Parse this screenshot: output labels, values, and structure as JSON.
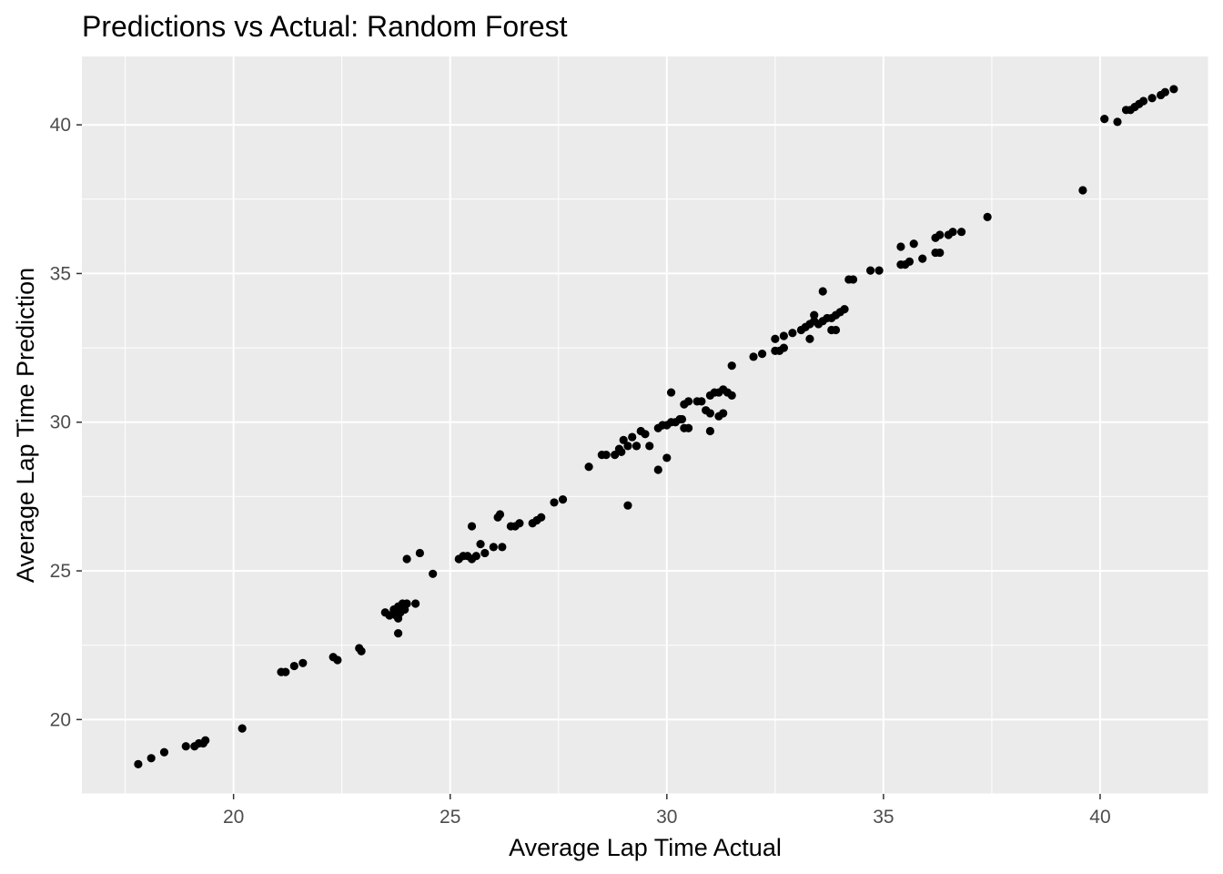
{
  "chart_data": {
    "type": "scatter",
    "title": "Predictions vs Actual: Random Forest",
    "xlabel": "Average Lap Time Actual",
    "ylabel": "Average Lap Time Prediction",
    "xlim": [
      16.5,
      42.5
    ],
    "ylim": [
      17.5,
      42.3
    ],
    "x_ticks": [
      20,
      25,
      30,
      35,
      40
    ],
    "y_ticks": [
      20,
      25,
      30,
      35,
      40
    ],
    "x_tick_labels": [
      "20",
      "25",
      "30",
      "35",
      "40"
    ],
    "y_tick_labels": [
      "20",
      "25",
      "30",
      "35",
      "40"
    ],
    "grid": true,
    "point_color": "#000000",
    "panel_color": "#ebebeb",
    "grid_color": "#ffffff",
    "points": [
      [
        17.8,
        18.5
      ],
      [
        18.1,
        18.7
      ],
      [
        18.4,
        18.9
      ],
      [
        18.9,
        19.1
      ],
      [
        19.1,
        19.1
      ],
      [
        19.2,
        19.2
      ],
      [
        19.3,
        19.2
      ],
      [
        19.35,
        19.3
      ],
      [
        20.2,
        19.7
      ],
      [
        21.1,
        21.6
      ],
      [
        21.2,
        21.6
      ],
      [
        21.4,
        21.8
      ],
      [
        21.6,
        21.9
      ],
      [
        22.3,
        22.1
      ],
      [
        22.4,
        22.0
      ],
      [
        22.9,
        22.4
      ],
      [
        22.95,
        22.3
      ],
      [
        23.5,
        23.6
      ],
      [
        23.6,
        23.5
      ],
      [
        23.7,
        23.7
      ],
      [
        23.75,
        23.5
      ],
      [
        23.8,
        23.4
      ],
      [
        23.8,
        23.8
      ],
      [
        23.85,
        23.6
      ],
      [
        23.9,
        23.9
      ],
      [
        23.95,
        23.7
      ],
      [
        24.0,
        23.9
      ],
      [
        23.8,
        22.9
      ],
      [
        24.2,
        23.9
      ],
      [
        24.0,
        25.4
      ],
      [
        24.3,
        25.6
      ],
      [
        24.6,
        24.9
      ],
      [
        25.2,
        25.4
      ],
      [
        25.3,
        25.5
      ],
      [
        25.4,
        25.5
      ],
      [
        25.5,
        25.4
      ],
      [
        25.6,
        25.5
      ],
      [
        25.5,
        26.5
      ],
      [
        25.7,
        25.9
      ],
      [
        25.8,
        25.6
      ],
      [
        26.0,
        25.8
      ],
      [
        26.2,
        25.8
      ],
      [
        26.1,
        26.8
      ],
      [
        26.15,
        26.9
      ],
      [
        26.4,
        26.5
      ],
      [
        26.6,
        26.6
      ],
      [
        26.5,
        26.5
      ],
      [
        26.9,
        26.6
      ],
      [
        27.0,
        26.7
      ],
      [
        27.1,
        26.8
      ],
      [
        27.4,
        27.3
      ],
      [
        27.6,
        27.4
      ],
      [
        28.2,
        28.5
      ],
      [
        28.5,
        28.9
      ],
      [
        28.6,
        28.9
      ],
      [
        28.8,
        28.9
      ],
      [
        28.9,
        29.1
      ],
      [
        29.0,
        29.4
      ],
      [
        28.95,
        29.0
      ],
      [
        29.1,
        29.2
      ],
      [
        29.2,
        29.5
      ],
      [
        29.3,
        29.2
      ],
      [
        29.4,
        29.7
      ],
      [
        29.5,
        29.6
      ],
      [
        29.3,
        29.2
      ],
      [
        29.6,
        29.2
      ],
      [
        29.8,
        29.8
      ],
      [
        29.9,
        29.9
      ],
      [
        30.0,
        29.9
      ],
      [
        30.1,
        30.0
      ],
      [
        30.2,
        30.0
      ],
      [
        30.3,
        30.1
      ],
      [
        30.4,
        29.8
      ],
      [
        30.35,
        30.1
      ],
      [
        30.5,
        29.8
      ],
      [
        30.1,
        31.0
      ],
      [
        29.1,
        27.2
      ],
      [
        29.8,
        28.4
      ],
      [
        30.0,
        28.8
      ],
      [
        30.4,
        30.6
      ],
      [
        30.5,
        30.7
      ],
      [
        30.7,
        30.7
      ],
      [
        30.8,
        30.7
      ],
      [
        30.9,
        30.4
      ],
      [
        31.0,
        30.3
      ],
      [
        31.0,
        30.9
      ],
      [
        31.1,
        31.0
      ],
      [
        31.2,
        31.0
      ],
      [
        31.3,
        31.1
      ],
      [
        31.4,
        31.0
      ],
      [
        31.5,
        30.9
      ],
      [
        31.2,
        30.2
      ],
      [
        31.3,
        30.3
      ],
      [
        31.0,
        29.7
      ],
      [
        31.5,
        31.9
      ],
      [
        32.0,
        32.2
      ],
      [
        32.2,
        32.3
      ],
      [
        32.5,
        32.4
      ],
      [
        32.6,
        32.4
      ],
      [
        32.7,
        32.5
      ],
      [
        32.5,
        32.8
      ],
      [
        32.7,
        32.9
      ],
      [
        32.9,
        33.0
      ],
      [
        33.1,
        33.1
      ],
      [
        33.2,
        33.2
      ],
      [
        33.3,
        33.3
      ],
      [
        33.4,
        33.4
      ],
      [
        33.5,
        33.3
      ],
      [
        33.4,
        33.6
      ],
      [
        33.3,
        32.8
      ],
      [
        33.6,
        33.4
      ],
      [
        33.7,
        33.5
      ],
      [
        33.8,
        33.5
      ],
      [
        33.9,
        33.6
      ],
      [
        34.0,
        33.7
      ],
      [
        34.1,
        33.8
      ],
      [
        33.8,
        33.1
      ],
      [
        33.9,
        33.1
      ],
      [
        33.6,
        34.4
      ],
      [
        34.2,
        34.8
      ],
      [
        34.3,
        34.8
      ],
      [
        34.7,
        35.1
      ],
      [
        34.9,
        35.1
      ],
      [
        35.4,
        35.3
      ],
      [
        35.5,
        35.3
      ],
      [
        35.6,
        35.4
      ],
      [
        35.4,
        35.9
      ],
      [
        35.7,
        36.0
      ],
      [
        35.9,
        35.5
      ],
      [
        36.2,
        35.7
      ],
      [
        36.3,
        35.7
      ],
      [
        36.2,
        36.2
      ],
      [
        36.3,
        36.3
      ],
      [
        36.5,
        36.3
      ],
      [
        36.6,
        36.4
      ],
      [
        36.8,
        36.4
      ],
      [
        37.4,
        36.9
      ],
      [
        39.6,
        37.8
      ],
      [
        40.1,
        40.2
      ],
      [
        40.4,
        40.1
      ],
      [
        40.6,
        40.5
      ],
      [
        40.7,
        40.5
      ],
      [
        40.8,
        40.6
      ],
      [
        40.9,
        40.7
      ],
      [
        41.0,
        40.8
      ],
      [
        41.2,
        40.9
      ],
      [
        41.4,
        41.0
      ],
      [
        41.5,
        41.1
      ],
      [
        41.7,
        41.2
      ]
    ]
  }
}
